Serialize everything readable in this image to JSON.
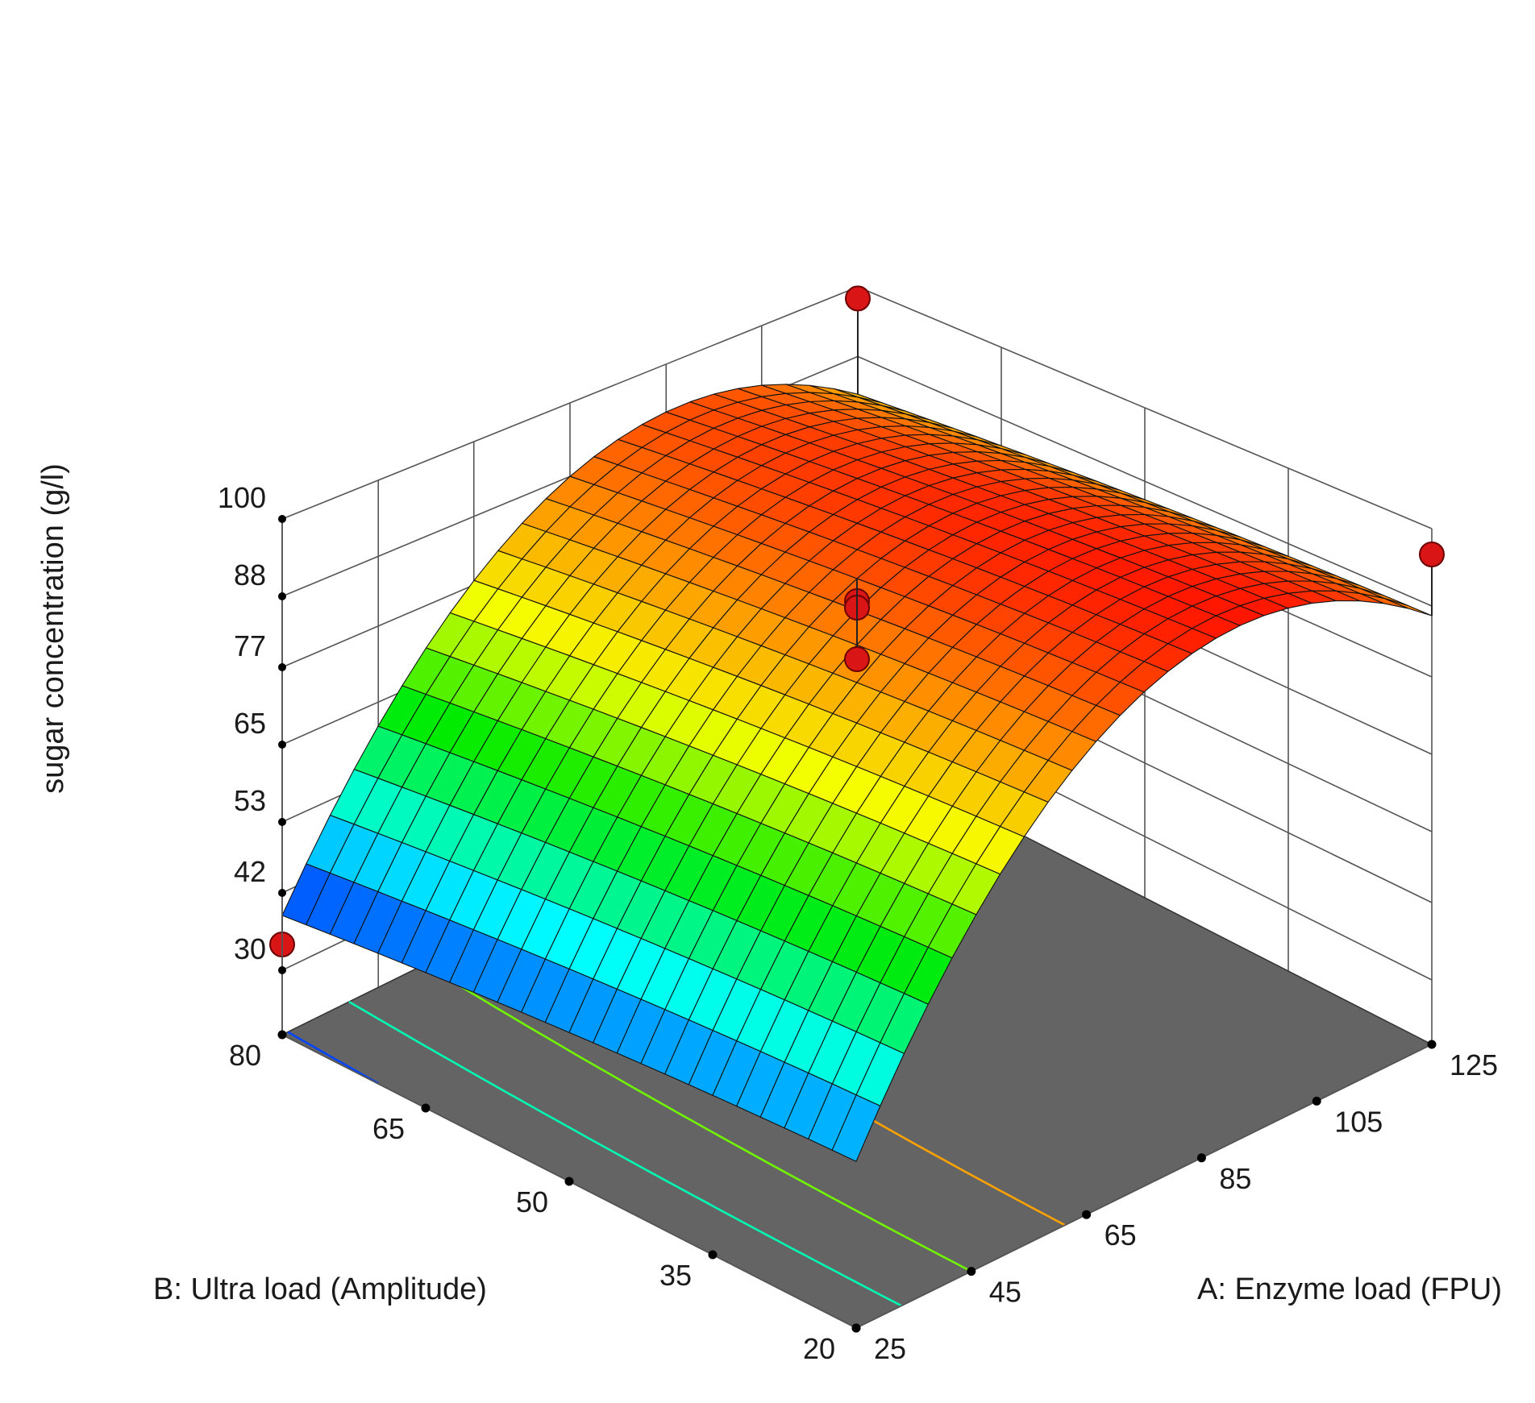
{
  "chart_data": {
    "type": "surface3d",
    "title": "",
    "zlabel": "sugar concentration (g/l)",
    "xlabel": "A: Enzyme load (FPU)",
    "ylabel": "B: Ultra load (Amplitude)",
    "x_ticks": [
      25,
      45,
      65,
      85,
      105,
      125
    ],
    "y_ticks": [
      20,
      35,
      50,
      65,
      80
    ],
    "z_ticks": [
      30,
      42,
      53,
      65,
      77,
      88,
      100
    ],
    "xlim": [
      25,
      125
    ],
    "ylim": [
      20,
      80
    ],
    "zlim": [
      20,
      100
    ],
    "surface_model": {
      "form": "quadratic",
      "b0": 91.5,
      "bA": 21.5,
      "bB": -2.5,
      "bAA": -28,
      "bBB": -1,
      "bAB": 0
    },
    "surface_range": [
      24,
      99
    ],
    "floor_contours": [
      40,
      55,
      70,
      85
    ],
    "points": [
      {
        "A": 125,
        "B": 80,
        "z": 98
      },
      {
        "A": 125,
        "B": 20,
        "z": 96
      },
      {
        "A": 75,
        "B": 50,
        "z": 88
      },
      {
        "A": 75,
        "B": 50,
        "z": 87
      },
      {
        "A": 75,
        "B": 50,
        "z": 79
      },
      {
        "A": 25,
        "B": 80,
        "z": 34
      }
    ],
    "colors": {
      "floor": "#646464",
      "frame": "#555555",
      "point": "#d91515"
    }
  }
}
